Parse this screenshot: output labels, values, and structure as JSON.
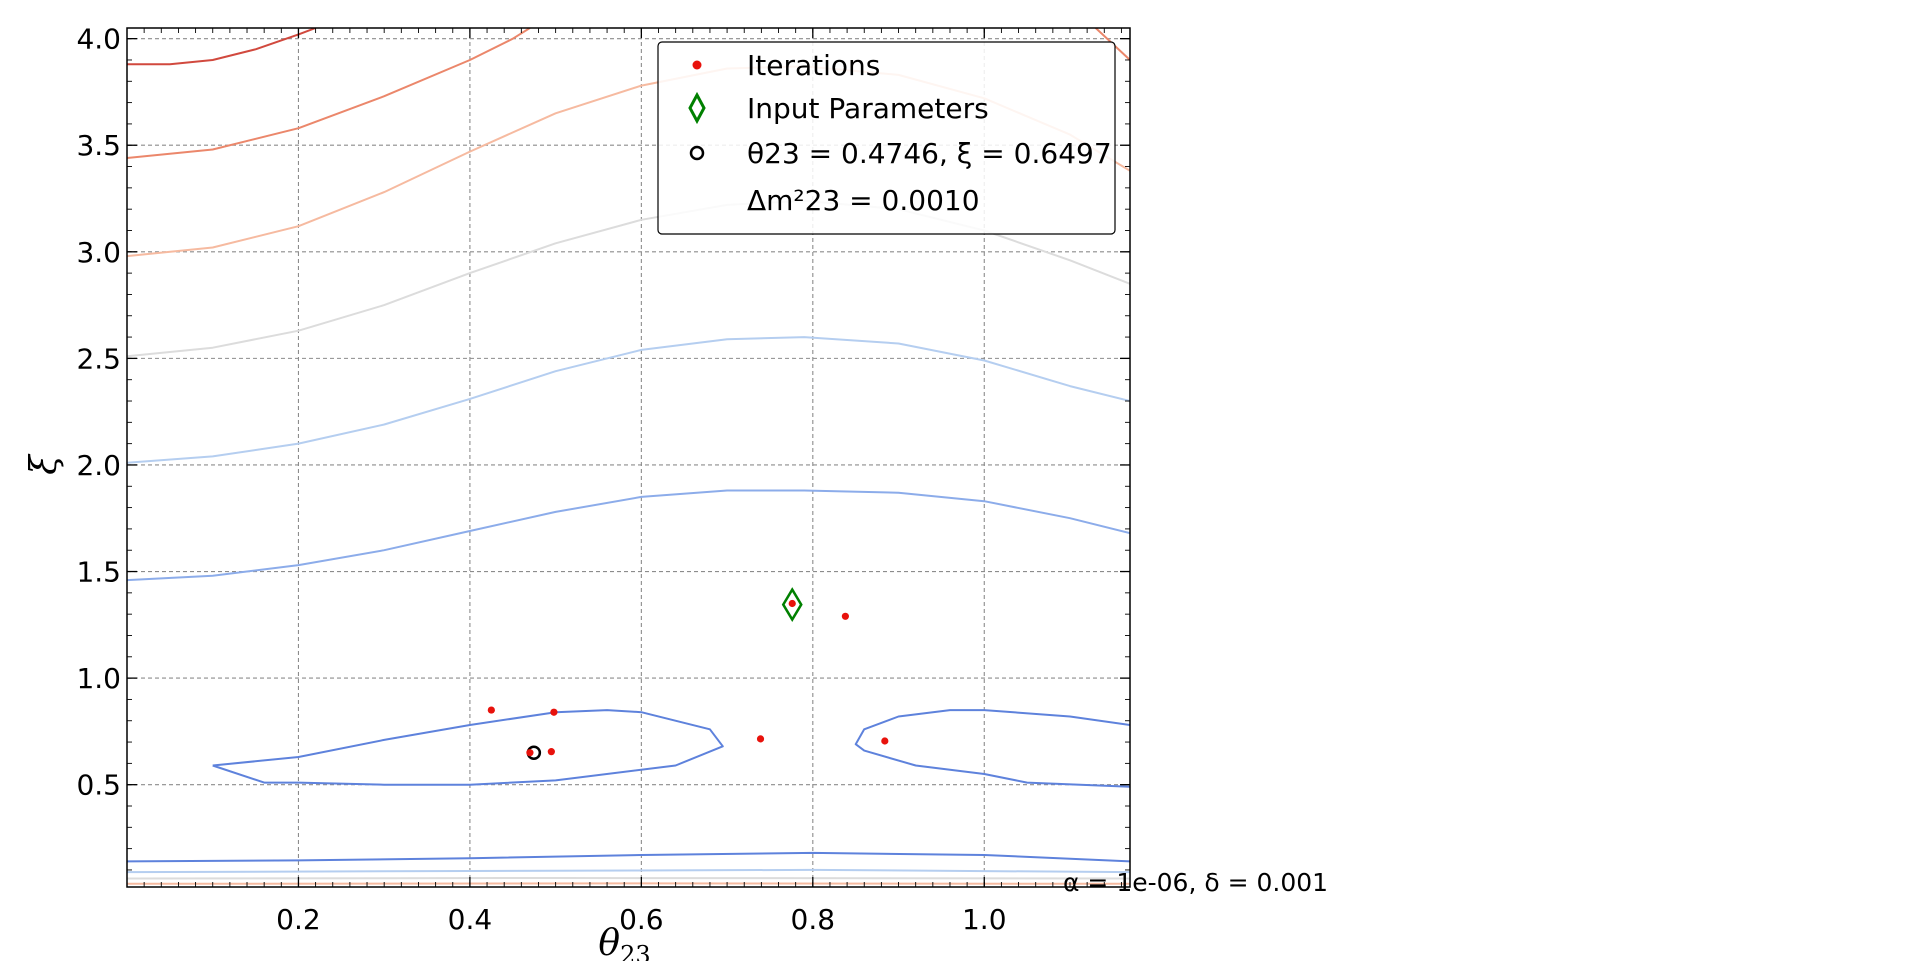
{
  "chart_data": {
    "type": "scatter",
    "xlabel": "θ23",
    "ylabel": "ξ",
    "xlim": [
      0.0,
      1.17
    ],
    "ylim": [
      0.02,
      4.05
    ],
    "xticks": [
      0.2,
      0.4,
      0.6,
      0.8,
      1.0
    ],
    "xtick_labels": [
      "0.2",
      "0.4",
      "0.6",
      "0.8",
      "1.0"
    ],
    "yticks": [
      0.5,
      1.0,
      1.5,
      2.0,
      2.5,
      3.0,
      3.5,
      4.0
    ],
    "ytick_labels": [
      "0.5",
      "1.0",
      "1.5",
      "2.0",
      "2.5",
      "3.0",
      "3.5",
      "4.0"
    ],
    "grid": true,
    "legend_position": "top-right",
    "legend": {
      "iterations": "Iterations",
      "input": "Input Parameters",
      "best_line1": "θ23 = 0.4746, ξ = 0.6497",
      "best_line2": "Δm²23 = 0.0010"
    },
    "annotation": "α = 1e-06, δ = 0.001",
    "series": [
      {
        "name": "Iterations",
        "color": "#e8120c",
        "points": [
          [
            0.425,
            0.85
          ],
          [
            0.498,
            0.84
          ],
          [
            0.495,
            0.655
          ],
          [
            0.47,
            0.65
          ],
          [
            0.739,
            0.715
          ],
          [
            0.776,
            1.35
          ],
          [
            0.838,
            1.29
          ],
          [
            0.884,
            0.705
          ]
        ]
      },
      {
        "name": "Input Parameters",
        "color": "#008000",
        "points": [
          [
            0.776,
            1.345
          ]
        ]
      },
      {
        "name": "θ23 = 0.4746, ξ = 0.6497",
        "color": "#000000",
        "points": [
          [
            0.4746,
            0.6497
          ]
        ]
      }
    ],
    "contours": [
      {
        "color": "#d1493e",
        "points": [
          [
            0.0,
            3.88
          ],
          [
            0.05,
            3.88
          ],
          [
            0.1,
            3.9
          ],
          [
            0.15,
            3.95
          ],
          [
            0.2,
            4.02
          ],
          [
            0.22,
            4.05
          ]
        ]
      },
      {
        "color": "#eb876b",
        "points": [
          [
            0.0,
            3.44
          ],
          [
            0.1,
            3.48
          ],
          [
            0.2,
            3.58
          ],
          [
            0.3,
            3.73
          ],
          [
            0.4,
            3.9
          ],
          [
            0.45,
            4.0
          ],
          [
            0.47,
            4.05
          ]
        ]
      },
      {
        "color": "#eb876b",
        "points": [
          [
            1.13,
            4.05
          ],
          [
            1.17,
            3.9
          ]
        ]
      },
      {
        "color": "#f6baa0",
        "points": [
          [
            0.0,
            2.98
          ],
          [
            0.1,
            3.02
          ],
          [
            0.2,
            3.12
          ],
          [
            0.3,
            3.28
          ],
          [
            0.4,
            3.47
          ],
          [
            0.5,
            3.65
          ],
          [
            0.6,
            3.78
          ],
          [
            0.7,
            3.86
          ],
          [
            0.79,
            3.87
          ],
          [
            0.9,
            3.83
          ],
          [
            1.0,
            3.72
          ],
          [
            1.1,
            3.55
          ],
          [
            1.17,
            3.38
          ]
        ]
      },
      {
        "color": "#dcdcdc",
        "points": [
          [
            0.0,
            2.51
          ],
          [
            0.1,
            2.55
          ],
          [
            0.2,
            2.63
          ],
          [
            0.3,
            2.75
          ],
          [
            0.4,
            2.9
          ],
          [
            0.5,
            3.04
          ],
          [
            0.6,
            3.15
          ],
          [
            0.7,
            3.22
          ],
          [
            0.79,
            3.24
          ],
          [
            0.9,
            3.2
          ],
          [
            1.0,
            3.1
          ],
          [
            1.1,
            2.96
          ],
          [
            1.17,
            2.85
          ]
        ]
      },
      {
        "color": "#b5cef0",
        "points": [
          [
            0.0,
            2.01
          ],
          [
            0.1,
            2.04
          ],
          [
            0.2,
            2.1
          ],
          [
            0.3,
            2.19
          ],
          [
            0.4,
            2.31
          ],
          [
            0.5,
            2.44
          ],
          [
            0.6,
            2.54
          ],
          [
            0.7,
            2.59
          ],
          [
            0.79,
            2.6
          ],
          [
            0.9,
            2.57
          ],
          [
            1.0,
            2.49
          ],
          [
            1.1,
            2.37
          ],
          [
            1.17,
            2.3
          ]
        ]
      },
      {
        "color": "#8cacea",
        "points": [
          [
            0.0,
            1.46
          ],
          [
            0.1,
            1.48
          ],
          [
            0.2,
            1.53
          ],
          [
            0.3,
            1.6
          ],
          [
            0.4,
            1.69
          ],
          [
            0.5,
            1.78
          ],
          [
            0.6,
            1.85
          ],
          [
            0.7,
            1.88
          ],
          [
            0.79,
            1.88
          ],
          [
            0.9,
            1.87
          ],
          [
            1.0,
            1.83
          ],
          [
            1.1,
            1.75
          ],
          [
            1.17,
            1.68
          ]
        ]
      },
      {
        "color": "#5e82dc",
        "points": [
          [
            0.1,
            0.59
          ],
          [
            0.2,
            0.63
          ],
          [
            0.3,
            0.71
          ],
          [
            0.4,
            0.78
          ],
          [
            0.5,
            0.84
          ],
          [
            0.56,
            0.85
          ],
          [
            0.6,
            0.84
          ],
          [
            0.68,
            0.76
          ],
          [
            0.695,
            0.68
          ],
          [
            0.64,
            0.59
          ],
          [
            0.5,
            0.52
          ],
          [
            0.4,
            0.5
          ],
          [
            0.3,
            0.5
          ],
          [
            0.2,
            0.51
          ],
          [
            0.16,
            0.51
          ],
          [
            0.1,
            0.59
          ]
        ]
      },
      {
        "color": "#5e82dc",
        "points": [
          [
            1.17,
            0.78
          ],
          [
            1.1,
            0.82
          ],
          [
            1.0,
            0.85
          ],
          [
            0.96,
            0.85
          ],
          [
            0.9,
            0.82
          ],
          [
            0.86,
            0.76
          ],
          [
            0.85,
            0.69
          ],
          [
            0.86,
            0.66
          ],
          [
            0.92,
            0.59
          ],
          [
            1.0,
            0.55
          ],
          [
            1.05,
            0.51
          ],
          [
            1.17,
            0.49
          ]
        ]
      },
      {
        "color": "#5e82dc",
        "points": [
          [
            0.0,
            0.14
          ],
          [
            0.2,
            0.145
          ],
          [
            0.4,
            0.155
          ],
          [
            0.6,
            0.17
          ],
          [
            0.8,
            0.18
          ],
          [
            1.0,
            0.17
          ],
          [
            1.17,
            0.14
          ]
        ]
      },
      {
        "color": "#b5cef0",
        "points": [
          [
            0.0,
            0.09
          ],
          [
            0.4,
            0.095
          ],
          [
            0.8,
            0.1
          ],
          [
            1.17,
            0.09
          ]
        ]
      },
      {
        "color": "#dcdcdc",
        "points": [
          [
            0.0,
            0.06
          ],
          [
            0.5,
            0.062
          ],
          [
            1.17,
            0.06
          ]
        ]
      },
      {
        "color": "#f6baa0",
        "points": [
          [
            0.0,
            0.035
          ],
          [
            0.6,
            0.037
          ],
          [
            1.17,
            0.035
          ]
        ]
      }
    ]
  }
}
